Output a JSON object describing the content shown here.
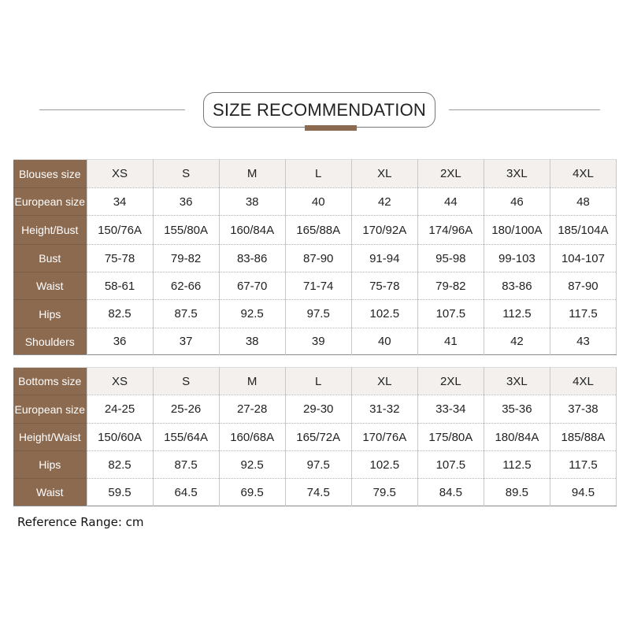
{
  "title": "SIZE RECOMMENDATION",
  "colors": {
    "accent_brown": "#8c6a50",
    "header_bg": "#f3f0ed"
  },
  "blouses": {
    "header": {
      "label": "Blouses size",
      "values": [
        "XS",
        "S",
        "M",
        "L",
        "XL",
        "2XL",
        "3XL",
        "4XL"
      ]
    },
    "rows": [
      {
        "label": "European size",
        "values": [
          "34",
          "36",
          "38",
          "40",
          "42",
          "44",
          "46",
          "48"
        ]
      },
      {
        "label": "Height/Bust",
        "values": [
          "150/76A",
          "155/80A",
          "160/84A",
          "165/88A",
          "170/92A",
          "174/96A",
          "180/100A",
          "185/104A"
        ]
      },
      {
        "label": "Bust",
        "values": [
          "75-78",
          "79-82",
          "83-86",
          "87-90",
          "91-94",
          "95-98",
          "99-103",
          "104-107"
        ]
      },
      {
        "label": "Waist",
        "values": [
          "58-61",
          "62-66",
          "67-70",
          "71-74",
          "75-78",
          "79-82",
          "83-86",
          "87-90"
        ]
      },
      {
        "label": "Hips",
        "values": [
          "82.5",
          "87.5",
          "92.5",
          "97.5",
          "102.5",
          "107.5",
          "112.5",
          "117.5"
        ]
      },
      {
        "label": "Shoulders",
        "values": [
          "36",
          "37",
          "38",
          "39",
          "40",
          "41",
          "42",
          "43"
        ]
      }
    ]
  },
  "bottoms": {
    "header": {
      "label": "Bottoms size",
      "values": [
        "XS",
        "S",
        "M",
        "L",
        "XL",
        "2XL",
        "3XL",
        "4XL"
      ]
    },
    "rows": [
      {
        "label": "European size",
        "values": [
          "24-25",
          "25-26",
          "27-28",
          "29-30",
          "31-32",
          "33-34",
          "35-36",
          "37-38"
        ]
      },
      {
        "label": "Height/Waist",
        "values": [
          "150/60A",
          "155/64A",
          "160/68A",
          "165/72A",
          "170/76A",
          "175/80A",
          "180/84A",
          "185/88A"
        ]
      },
      {
        "label": "Hips",
        "values": [
          "82.5",
          "87.5",
          "92.5",
          "97.5",
          "102.5",
          "107.5",
          "112.5",
          "117.5"
        ]
      },
      {
        "label": "Waist",
        "values": [
          "59.5",
          "64.5",
          "69.5",
          "74.5",
          "79.5",
          "84.5",
          "89.5",
          "94.5"
        ]
      }
    ]
  },
  "reference_note": "Reference Range: cm"
}
